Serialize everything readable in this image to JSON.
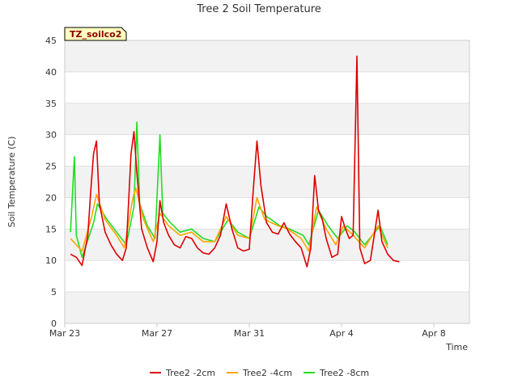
{
  "chart_data": {
    "type": "line",
    "title": "Tree 2 Soil Temperature",
    "xlabel": "Time",
    "ylabel": "Soil Temperature (C)",
    "badge": "TZ_soilco2",
    "ylim": [
      0,
      45
    ],
    "yticks": [
      0,
      5,
      10,
      15,
      20,
      25,
      30,
      35,
      40,
      45
    ],
    "xlim": [
      "2023-03-23",
      "2023-04-10"
    ],
    "xticks": [
      {
        "date": "2023-03-23",
        "label": "Mar 23"
      },
      {
        "date": "2023-03-27",
        "label": "Mar 27"
      },
      {
        "date": "2023-03-31",
        "label": "Mar 31"
      },
      {
        "date": "2023-04-04",
        "label": "Apr 4"
      },
      {
        "date": "2023-04-08",
        "label": "Apr 8"
      }
    ],
    "grid": "horizontal bands",
    "legend": "bottom",
    "colors": {
      "Tree2 -2cm": "#dd0000",
      "Tree2 -4cm": "#ffa500",
      "Tree2 -8cm": "#22dd22"
    },
    "series": [
      {
        "name": "Tree2 -2cm",
        "points": [
          [
            "2023-03-23T06:00",
            11.0
          ],
          [
            "2023-03-23T12:00",
            10.5
          ],
          [
            "2023-03-23T18:00",
            9.2
          ],
          [
            "2023-03-24T00:00",
            14.0
          ],
          [
            "2023-03-24T03:00",
            21.0
          ],
          [
            "2023-03-24T06:00",
            27.0
          ],
          [
            "2023-03-24T09:00",
            29.0
          ],
          [
            "2023-03-24T12:00",
            19.0
          ],
          [
            "2023-03-24T18:00",
            14.5
          ],
          [
            "2023-03-25T00:00",
            12.5
          ],
          [
            "2023-03-25T06:00",
            11.0
          ],
          [
            "2023-03-25T12:00",
            10.0
          ],
          [
            "2023-03-25T16:00",
            12.0
          ],
          [
            "2023-03-25T21:00",
            27.0
          ],
          [
            "2023-03-26T00:00",
            30.5
          ],
          [
            "2023-03-26T03:00",
            24.0
          ],
          [
            "2023-03-26T08:00",
            15.0
          ],
          [
            "2023-03-26T14:00",
            12.0
          ],
          [
            "2023-03-26T20:00",
            9.8
          ],
          [
            "2023-03-27T00:00",
            13.0
          ],
          [
            "2023-03-27T03:00",
            19.5
          ],
          [
            "2023-03-27T07:00",
            16.0
          ],
          [
            "2023-03-27T12:00",
            14.0
          ],
          [
            "2023-03-27T18:00",
            12.5
          ],
          [
            "2023-03-28T00:00",
            12.0
          ],
          [
            "2023-03-28T06:00",
            13.8
          ],
          [
            "2023-03-28T12:00",
            13.5
          ],
          [
            "2023-03-28T18:00",
            12.0
          ],
          [
            "2023-03-29T00:00",
            11.2
          ],
          [
            "2023-03-29T06:00",
            11.0
          ],
          [
            "2023-03-29T12:00",
            12.0
          ],
          [
            "2023-03-29T18:00",
            14.0
          ],
          [
            "2023-03-30T00:00",
            19.0
          ],
          [
            "2023-03-30T06:00",
            15.0
          ],
          [
            "2023-03-30T12:00",
            12.0
          ],
          [
            "2023-03-30T18:00",
            11.5
          ],
          [
            "2023-03-31T00:00",
            11.8
          ],
          [
            "2023-03-31T04:00",
            21.0
          ],
          [
            "2023-03-31T08:00",
            29.0
          ],
          [
            "2023-03-31T12:00",
            22.0
          ],
          [
            "2023-03-31T18:00",
            16.0
          ],
          [
            "2023-04-01T00:00",
            14.5
          ],
          [
            "2023-04-01T06:00",
            14.2
          ],
          [
            "2023-04-01T12:00",
            16.0
          ],
          [
            "2023-04-01T18:00",
            14.2
          ],
          [
            "2023-04-02T00:00",
            13.0
          ],
          [
            "2023-04-02T06:00",
            12.0
          ],
          [
            "2023-04-02T12:00",
            9.0
          ],
          [
            "2023-04-02T16:00",
            12.0
          ],
          [
            "2023-04-02T20:00",
            23.5
          ],
          [
            "2023-04-03T00:00",
            18.0
          ],
          [
            "2023-04-03T04:00",
            16.5
          ],
          [
            "2023-04-03T08:00",
            13.5
          ],
          [
            "2023-04-03T14:00",
            10.5
          ],
          [
            "2023-04-03T20:00",
            11.0
          ],
          [
            "2023-04-04T00:00",
            17.0
          ],
          [
            "2023-04-04T04:00",
            15.0
          ],
          [
            "2023-04-04T08:00",
            13.5
          ],
          [
            "2023-04-04T12:00",
            14.0
          ],
          [
            "2023-04-04T16:00",
            42.5
          ],
          [
            "2023-04-04T19:00",
            12.0
          ],
          [
            "2023-04-05T00:00",
            9.5
          ],
          [
            "2023-04-05T06:00",
            10.0
          ],
          [
            "2023-04-05T10:00",
            14.0
          ],
          [
            "2023-04-05T14:00",
            18.0
          ],
          [
            "2023-04-05T18:00",
            13.0
          ],
          [
            "2023-04-06T00:00",
            11.0
          ],
          [
            "2023-04-06T06:00",
            10.0
          ],
          [
            "2023-04-06T12:00",
            9.8
          ]
        ]
      },
      {
        "name": "Tree2 -4cm",
        "points": [
          [
            "2023-03-23T06:00",
            13.5
          ],
          [
            "2023-03-23T18:00",
            11.5
          ],
          [
            "2023-03-24T04:00",
            17.0
          ],
          [
            "2023-03-24T09:00",
            20.5
          ],
          [
            "2023-03-24T18:00",
            16.5
          ],
          [
            "2023-03-25T06:00",
            14.0
          ],
          [
            "2023-03-25T14:00",
            12.0
          ],
          [
            "2023-03-25T23:00",
            20.0
          ],
          [
            "2023-03-26T02:00",
            21.5
          ],
          [
            "2023-03-26T10:00",
            16.5
          ],
          [
            "2023-03-26T20:00",
            13.0
          ],
          [
            "2023-03-27T03:00",
            17.5
          ],
          [
            "2023-03-27T12:00",
            15.5
          ],
          [
            "2023-03-28T00:00",
            14.0
          ],
          [
            "2023-03-28T12:00",
            14.5
          ],
          [
            "2023-03-29T00:00",
            13.0
          ],
          [
            "2023-03-29T12:00",
            13.0
          ],
          [
            "2023-03-30T00:00",
            17.0
          ],
          [
            "2023-03-30T12:00",
            14.0
          ],
          [
            "2023-03-31T00:00",
            13.5
          ],
          [
            "2023-03-31T08:00",
            20.0
          ],
          [
            "2023-03-31T16:00",
            16.5
          ],
          [
            "2023-04-01T06:00",
            15.5
          ],
          [
            "2023-04-01T16:00",
            15.0
          ],
          [
            "2023-04-02T06:00",
            13.5
          ],
          [
            "2023-04-02T14:00",
            11.5
          ],
          [
            "2023-04-02T22:00",
            18.5
          ],
          [
            "2023-04-03T08:00",
            15.0
          ],
          [
            "2023-04-03T18:00",
            12.5
          ],
          [
            "2023-04-04T02:00",
            15.5
          ],
          [
            "2023-04-04T12:00",
            14.0
          ],
          [
            "2023-04-05T00:00",
            12.0
          ],
          [
            "2023-04-05T14:00",
            15.5
          ],
          [
            "2023-04-06T00:00",
            12.0
          ]
        ]
      },
      {
        "name": "Tree2 -8cm",
        "points": [
          [
            "2023-03-23T06:00",
            14.5
          ],
          [
            "2023-03-23T10:00",
            26.5
          ],
          [
            "2023-03-23T12:00",
            14.0
          ],
          [
            "2023-03-23T18:00",
            10.5
          ],
          [
            "2023-03-24T06:00",
            16.0
          ],
          [
            "2023-03-24T10:00",
            19.0
          ],
          [
            "2023-03-24T20:00",
            16.5
          ],
          [
            "2023-03-25T06:00",
            14.5
          ],
          [
            "2023-03-25T16:00",
            12.5
          ],
          [
            "2023-03-26T00:00",
            18.5
          ],
          [
            "2023-03-26T03:00",
            32.0
          ],
          [
            "2023-03-26T06:00",
            19.0
          ],
          [
            "2023-03-26T14:00",
            15.5
          ],
          [
            "2023-03-26T22:00",
            13.5
          ],
          [
            "2023-03-27T03:00",
            30.0
          ],
          [
            "2023-03-27T06:00",
            17.5
          ],
          [
            "2023-03-27T14:00",
            16.0
          ],
          [
            "2023-03-28T00:00",
            14.5
          ],
          [
            "2023-03-28T12:00",
            15.0
          ],
          [
            "2023-03-29T00:00",
            13.5
          ],
          [
            "2023-03-29T12:00",
            13.0
          ],
          [
            "2023-03-30T02:00",
            16.5
          ],
          [
            "2023-03-30T12:00",
            14.5
          ],
          [
            "2023-03-31T00:00",
            13.5
          ],
          [
            "2023-03-31T10:00",
            18.5
          ],
          [
            "2023-03-31T18:00",
            17.0
          ],
          [
            "2023-04-01T08:00",
            15.5
          ],
          [
            "2023-04-01T18:00",
            15.0
          ],
          [
            "2023-04-02T08:00",
            14.0
          ],
          [
            "2023-04-02T14:00",
            12.5
          ],
          [
            "2023-04-03T00:00",
            18.0
          ],
          [
            "2023-04-03T10:00",
            15.5
          ],
          [
            "2023-04-03T20:00",
            13.5
          ],
          [
            "2023-04-04T06:00",
            15.5
          ],
          [
            "2023-04-04T14:00",
            14.5
          ],
          [
            "2023-04-05T00:00",
            12.5
          ],
          [
            "2023-04-05T16:00",
            15.5
          ],
          [
            "2023-04-06T00:00",
            12.5
          ]
        ]
      }
    ]
  }
}
